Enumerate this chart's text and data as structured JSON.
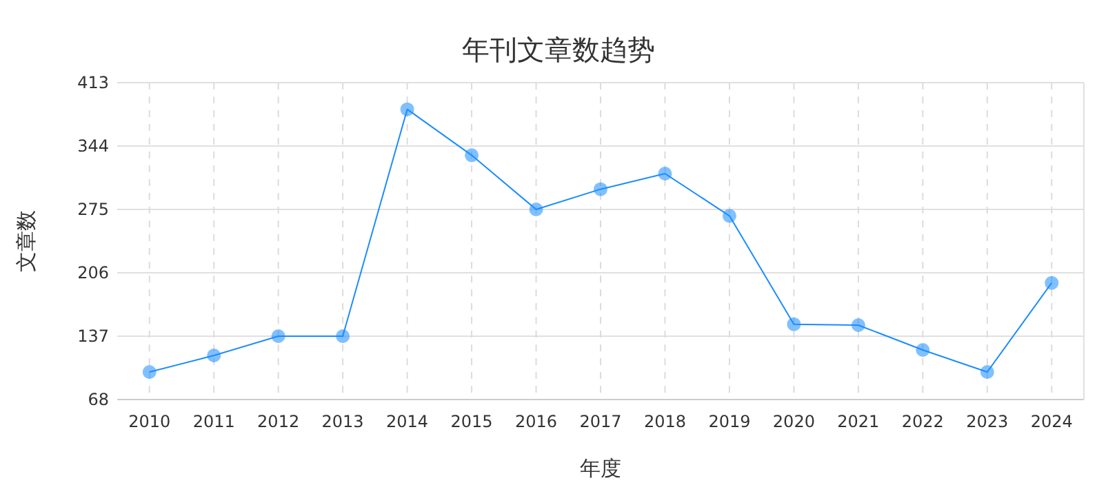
{
  "chart_data": {
    "type": "line",
    "title": "年刊文章数趋势",
    "xlabel": "年度",
    "ylabel": "文章数",
    "categories": [
      "2010",
      "2011",
      "2012",
      "2013",
      "2014",
      "2015",
      "2016",
      "2017",
      "2018",
      "2019",
      "2020",
      "2021",
      "2022",
      "2023",
      "2024"
    ],
    "series": [
      {
        "color": "#1a8cff",
        "values": [
          98,
          116,
          137,
          137,
          384,
          334,
          275,
          297,
          314,
          268,
          150,
          149,
          122,
          98,
          195
        ]
      }
    ],
    "ylim": [
      68,
      413
    ],
    "yticks": [
      68,
      137,
      206,
      275,
      344,
      413
    ],
    "grid": true,
    "marker": "circle",
    "line_style": "solid"
  }
}
